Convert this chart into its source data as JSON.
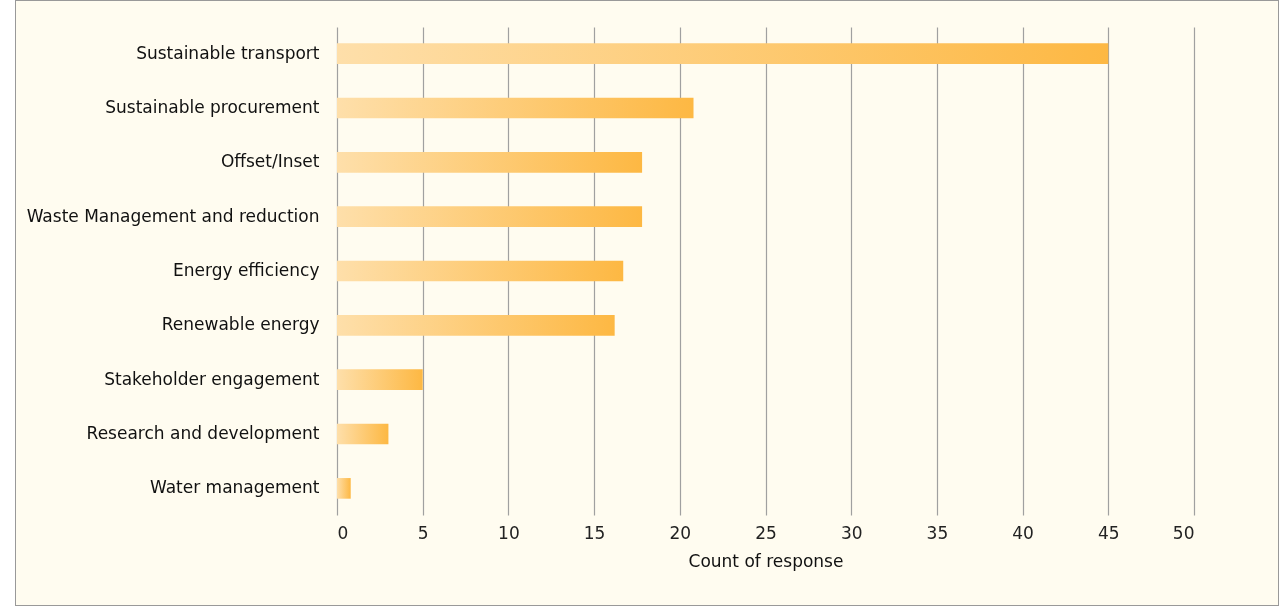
{
  "chart_data": {
    "type": "bar",
    "orientation": "horizontal",
    "xlabel": "Count of response",
    "categories": [
      "Sustainable transport",
      "Sustainable procurement",
      "Offset/Inset",
      "Waste Management and reduction",
      "Energy efficiency",
      "Renewable energy",
      "Stakeholder engagement",
      "Research and development",
      "Water management"
    ],
    "values": [
      45,
      20.8,
      17.8,
      17.8,
      16.7,
      16.2,
      5,
      3,
      0.8
    ],
    "color": "#fdb843",
    "xlim": [
      0,
      50
    ],
    "xticks": [
      0,
      5,
      10,
      15,
      20,
      25,
      30,
      35,
      40,
      45,
      50
    ],
    "grid": "x"
  }
}
